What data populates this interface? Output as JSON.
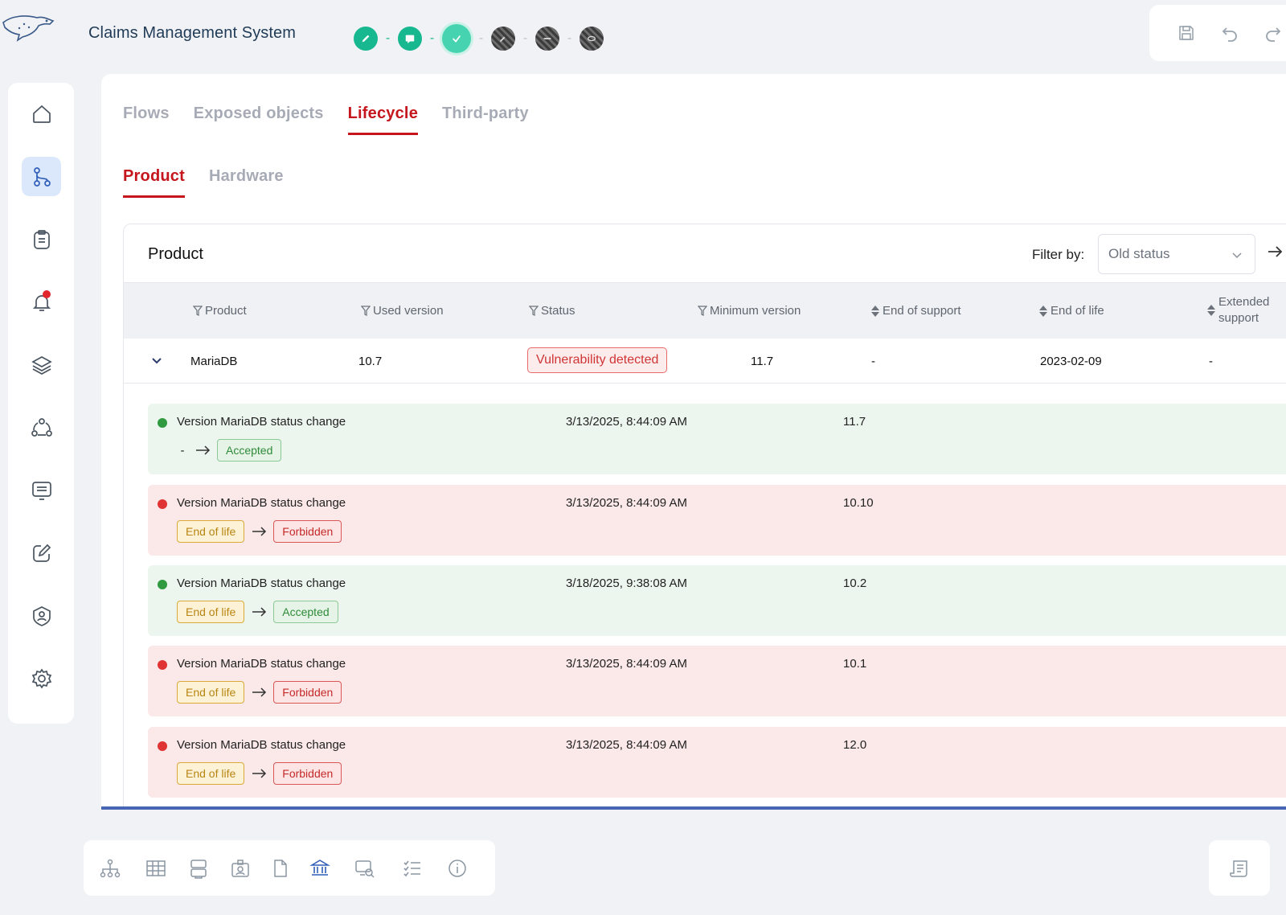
{
  "app": {
    "title": "Claims Management System",
    "logo": "cheetah-logo"
  },
  "steps": [
    {
      "icon": "pencil-icon",
      "state": "done"
    },
    {
      "icon": "chat-icon",
      "state": "done"
    },
    {
      "icon": "check-icon",
      "state": "current"
    },
    {
      "icon": "wrench-icon",
      "state": "locked"
    },
    {
      "icon": "resize-icon",
      "state": "locked"
    },
    {
      "icon": "eye-icon",
      "state": "locked"
    }
  ],
  "toolbar": {
    "icons": [
      "save-icon",
      "undo-icon",
      "redo-icon"
    ]
  },
  "sidebar": {
    "items": [
      {
        "icon": "home-icon"
      },
      {
        "icon": "flow-icon",
        "active": true
      },
      {
        "icon": "clipboard-icon"
      },
      {
        "icon": "bell-icon",
        "notification": true
      },
      {
        "icon": "layers-icon"
      },
      {
        "icon": "network-icon"
      },
      {
        "icon": "screen-icon"
      },
      {
        "icon": "edit-icon"
      },
      {
        "icon": "user-shield-icon"
      },
      {
        "icon": "settings-icon"
      }
    ]
  },
  "tabs": [
    {
      "label": "Flows"
    },
    {
      "label": "Exposed objects"
    },
    {
      "label": "Lifecycle",
      "active": true
    },
    {
      "label": "Third-party"
    }
  ],
  "subtabs": [
    {
      "label": "Product",
      "active": true
    },
    {
      "label": "Hardware"
    }
  ],
  "card": {
    "title": "Product",
    "filter_label": "Filter by:",
    "filter_value": "Old status"
  },
  "table": {
    "columns": [
      "Product",
      "Used version",
      "Status",
      "Minimum version",
      "End of support",
      "End of life",
      "Extended support"
    ],
    "row": {
      "product": "MariaDB",
      "used_version": "10.7",
      "status": "Vulnerability detected",
      "minimum_version": "11.7",
      "end_of_support": "-",
      "end_of_life": "2023-02-09",
      "extended_support": "-"
    }
  },
  "history": [
    {
      "kind": "ok",
      "title_prefix": "Version ",
      "product": "MariaDB",
      "title_suffix": " status change",
      "date": "3/13/2025, 8:44:09 AM",
      "version": "11.7",
      "from": "-",
      "to": "Accepted"
    },
    {
      "kind": "bad",
      "title_prefix": "Version ",
      "product": "MariaDB",
      "title_suffix": " status change",
      "date": "3/13/2025, 8:44:09 AM",
      "version": "10.10",
      "from": "End of life",
      "to": "Forbidden"
    },
    {
      "kind": "ok",
      "title_prefix": "Version ",
      "product": "MariaDB",
      "title_suffix": " status change",
      "date": "3/18/2025, 9:38:08 AM",
      "version": "10.2",
      "from": "End of life",
      "to": "Accepted"
    },
    {
      "kind": "bad",
      "title_prefix": "Version ",
      "product": "MariaDB",
      "title_suffix": " status change",
      "date": "3/13/2025, 8:44:09 AM",
      "version": "10.1",
      "from": "End of life",
      "to": "Forbidden"
    },
    {
      "kind": "bad",
      "title_prefix": "Version ",
      "product": "MariaDB",
      "title_suffix": " status change",
      "date": "3/13/2025, 8:44:09 AM",
      "version": "12.0",
      "from": "End of life",
      "to": "Forbidden"
    }
  ],
  "bottombar": {
    "icons": [
      "hierarchy-icon",
      "table-icon",
      "database-icon",
      "badge-icon",
      "document-icon",
      "bank-icon",
      "monitor-search-icon",
      "checklist-icon",
      "info-icon"
    ],
    "right_icon": "report-icon"
  },
  "colors": {
    "accent_red": "#c4161c",
    "accent_blue": "#2f5fb7",
    "step_green": "#17b890"
  }
}
